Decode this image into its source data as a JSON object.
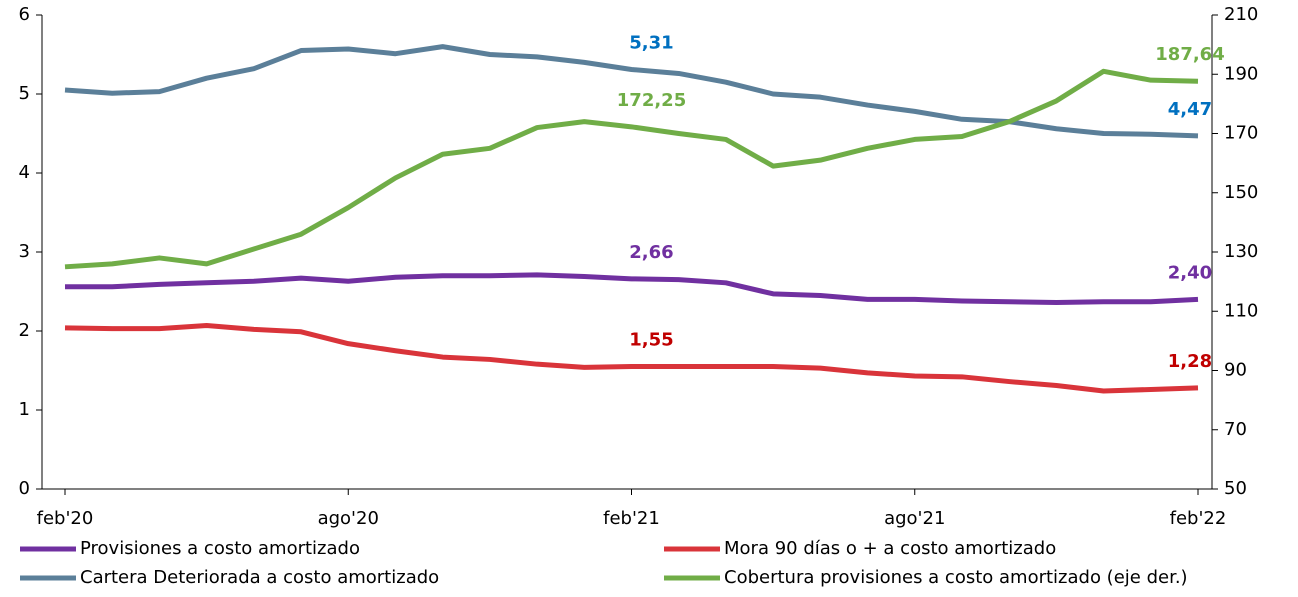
{
  "chart_data": {
    "type": "line",
    "categories": [
      "feb'20",
      null,
      null,
      null,
      null,
      null,
      "ago'20",
      null,
      null,
      null,
      null,
      null,
      "feb'21",
      null,
      null,
      null,
      null,
      null,
      "ago'21",
      null,
      null,
      null,
      null,
      null,
      "feb'22"
    ],
    "ylim": [
      0,
      6
    ],
    "yticks": [
      0,
      1,
      2,
      3,
      4,
      5,
      6
    ],
    "y2lim": [
      50,
      210
    ],
    "y2ticks": [
      50,
      70,
      90,
      110,
      130,
      150,
      170,
      190,
      210
    ],
    "series": [
      {
        "name": "Provisiones a costo amortizado",
        "color": "#7030a0",
        "label_color": "#7030a0",
        "values": [
          2.56,
          2.56,
          2.59,
          2.61,
          2.63,
          2.67,
          2.63,
          2.68,
          2.7,
          2.7,
          2.71,
          2.69,
          2.66,
          2.65,
          2.61,
          2.47,
          2.45,
          2.4,
          2.4,
          2.38,
          2.37,
          2.36,
          2.37,
          2.37,
          2.4
        ],
        "value_labels": [
          null,
          null,
          null,
          null,
          null,
          null,
          null,
          null,
          null,
          null,
          null,
          null,
          "2,66",
          null,
          null,
          null,
          null,
          null,
          null,
          null,
          null,
          null,
          null,
          null,
          "2,40"
        ]
      },
      {
        "name": "Mora 90 días o + a costo amortizado",
        "color": "#d9343a",
        "label_color": "#c00000",
        "values": [
          2.04,
          2.03,
          2.03,
          2.07,
          2.02,
          1.99,
          1.84,
          1.75,
          1.67,
          1.64,
          1.58,
          1.54,
          1.55,
          1.55,
          1.55,
          1.55,
          1.53,
          1.47,
          1.43,
          1.42,
          1.36,
          1.31,
          1.24,
          1.26,
          1.28
        ],
        "value_labels": [
          null,
          null,
          null,
          null,
          null,
          null,
          null,
          null,
          null,
          null,
          null,
          null,
          "1,55",
          null,
          null,
          null,
          null,
          null,
          null,
          null,
          null,
          null,
          null,
          null,
          "1,28"
        ]
      },
      {
        "name": "Cartera Deteriorada a costo amortizado",
        "color": "#5b7f99",
        "label_color": "#0070c0",
        "values": [
          5.05,
          5.01,
          5.03,
          5.2,
          5.32,
          5.55,
          5.57,
          5.51,
          5.6,
          5.5,
          5.47,
          5.4,
          5.31,
          5.26,
          5.15,
          5.0,
          4.96,
          4.86,
          4.78,
          4.68,
          4.65,
          4.56,
          4.5,
          4.49,
          4.47
        ],
        "value_labels": [
          null,
          null,
          null,
          null,
          null,
          null,
          null,
          null,
          null,
          null,
          null,
          null,
          "5,31",
          null,
          null,
          null,
          null,
          null,
          null,
          null,
          null,
          null,
          null,
          null,
          "4,47"
        ]
      },
      {
        "name": "Cobertura provisiones a costo amortizado (eje der.)",
        "color": "#70ad47",
        "label_color": "#70ad47",
        "axis": "y2",
        "values": [
          125,
          126,
          128,
          126,
          131,
          136,
          145,
          155,
          163,
          165,
          172,
          174,
          172.25,
          170,
          168,
          159,
          161,
          165,
          168,
          169,
          174,
          181,
          191,
          188,
          187.64
        ],
        "value_labels": [
          null,
          null,
          null,
          null,
          null,
          null,
          null,
          null,
          null,
          null,
          null,
          null,
          "172,25",
          null,
          null,
          null,
          null,
          null,
          null,
          null,
          null,
          null,
          null,
          null,
          "187,64"
        ]
      }
    ]
  }
}
